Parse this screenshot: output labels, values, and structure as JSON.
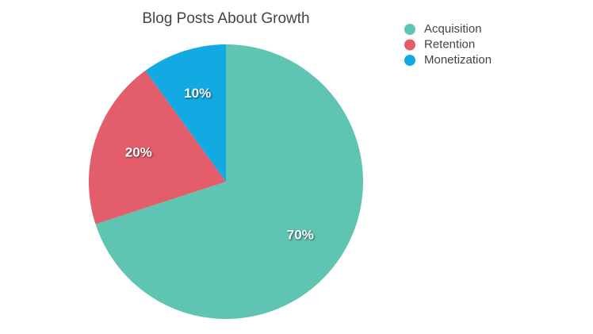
{
  "chart_data": {
    "type": "pie",
    "title": "Blog Posts About Growth",
    "categories": [
      "Acquisition",
      "Retention",
      "Monetization"
    ],
    "values": [
      70,
      20,
      10
    ],
    "value_labels": [
      "70%",
      "20%",
      "10%"
    ],
    "colors": [
      "#5fc4b1",
      "#e35d6b",
      "#13a9e3"
    ],
    "legend": "top-right"
  }
}
